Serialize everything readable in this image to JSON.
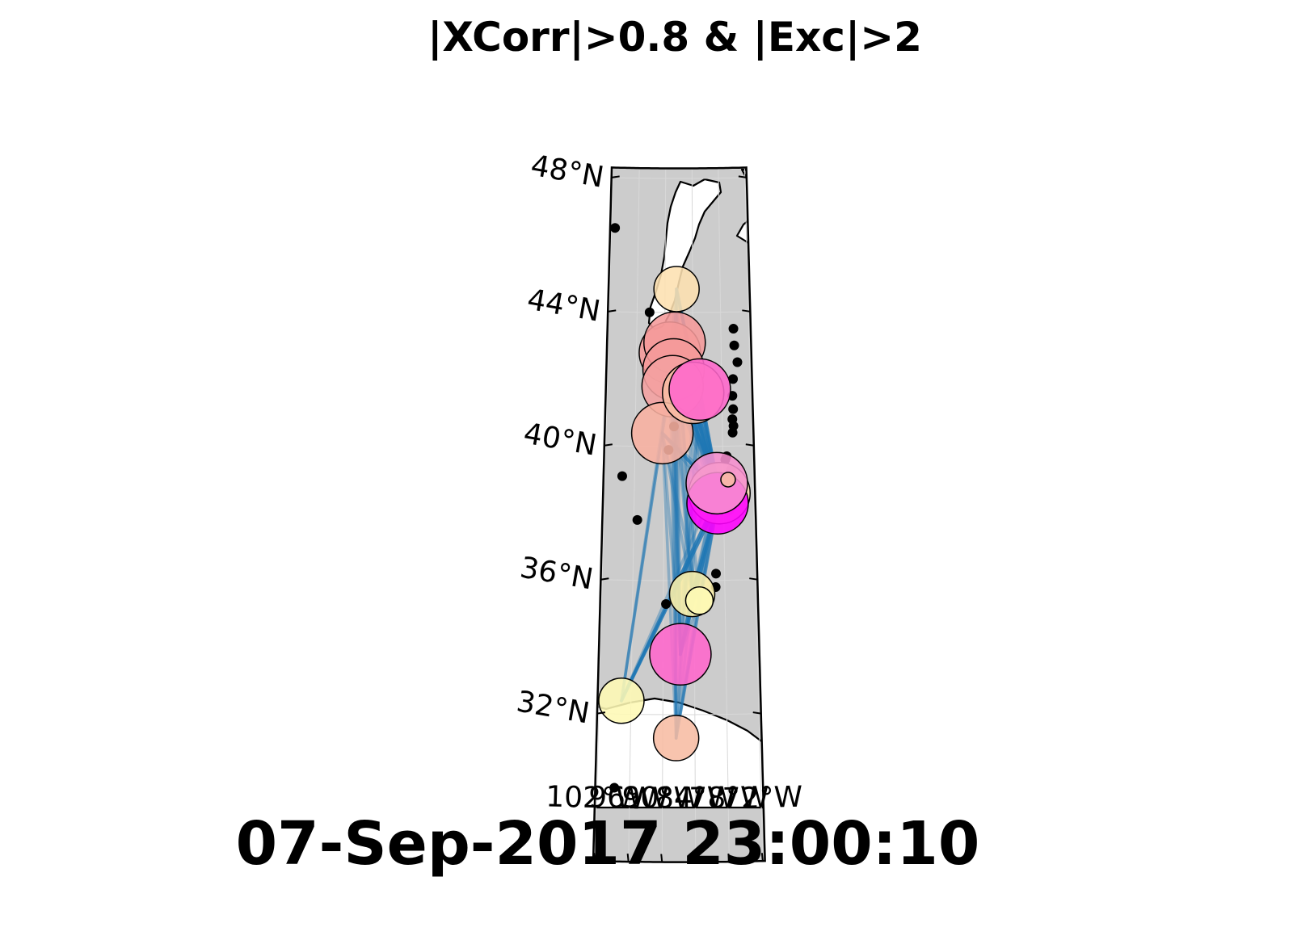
{
  "title": "|XCorr|>0.8 & |Exc|>2",
  "timestamp": "07-Sep-2017 23:00:10",
  "lat_labels": [
    {
      "text": "48°N",
      "lat": 48
    },
    {
      "text": "44°N",
      "lat": 44
    },
    {
      "text": "40°N",
      "lat": 40
    },
    {
      "text": "36°N",
      "lat": 36
    },
    {
      "text": "32°N",
      "lat": 32
    }
  ],
  "lon_labels": [
    {
      "text": "102°W",
      "lon": -102
    },
    {
      "text": "96°W",
      "lon": -96
    },
    {
      "text": "90°W",
      "lon": -90
    },
    {
      "text": "84°W",
      "lon": -84
    },
    {
      "text": "78°W",
      "lon": -78
    },
    {
      "text": "72°W",
      "lon": -72
    }
  ],
  "colors": {
    "land": "#cccccc",
    "water": "#ffffff",
    "link": "#1f77b4",
    "dot": "#000000"
  },
  "stations_active": [
    {
      "id": "A",
      "lon": -87.5,
      "lat": 44.7,
      "size": "medium",
      "color": "#fde0b0"
    },
    {
      "id": "B",
      "lon": -88.9,
      "lat": 42.8,
      "size": "large",
      "color": "#f59a9a"
    },
    {
      "id": "C",
      "lon": -87.9,
      "lat": 43.1,
      "size": "large",
      "color": "#f59a9a"
    },
    {
      "id": "D",
      "lon": -88.1,
      "lat": 42.3,
      "size": "large",
      "color": "#f59a9a"
    },
    {
      "id": "E",
      "lon": -88.3,
      "lat": 41.8,
      "size": "large",
      "color": "#f4a0a0"
    },
    {
      "id": "F",
      "lon": -90.4,
      "lat": 40.4,
      "size": "large",
      "color": "#f8b0a0"
    },
    {
      "id": "G",
      "lon": -84.0,
      "lat": 41.6,
      "size": "large",
      "color": "#f7bca3"
    },
    {
      "id": "H",
      "lon": -82.6,
      "lat": 41.7,
      "size": "large",
      "color": "#ff66cc"
    },
    {
      "id": "I",
      "lon": -78.8,
      "lat": 38.6,
      "size": "large",
      "color": "#fde0b0"
    },
    {
      "id": "J",
      "lon": -79.2,
      "lat": 38.3,
      "size": "large",
      "color": "#ff00ff"
    },
    {
      "id": "K",
      "lon": -79.3,
      "lat": 38.9,
      "size": "large",
      "color": "#f78fcf"
    },
    {
      "id": "L",
      "lon": -77.0,
      "lat": 39.0,
      "size": "tiny",
      "color": "#f7bca3"
    },
    {
      "id": "M",
      "lon": -84.4,
      "lat": 35.6,
      "size": "medium",
      "color": "#fdf0a8"
    },
    {
      "id": "N",
      "lon": -83.0,
      "lat": 35.4,
      "size": "small",
      "color": "#fef9b5"
    },
    {
      "id": "O",
      "lon": -86.7,
      "lat": 33.8,
      "size": "large",
      "color": "#ff66cc"
    },
    {
      "id": "P",
      "lon": -97.8,
      "lat": 32.4,
      "size": "medium",
      "color": "#fef9b5"
    },
    {
      "id": "Q",
      "lon": -87.5,
      "lat": 31.3,
      "size": "medium",
      "color": "#f7bca3"
    }
  ],
  "stations_inactive": [
    {
      "lon": -101.2,
      "lat": 46.5
    },
    {
      "lon": -93.3,
      "lat": 44.0
    },
    {
      "lon": -98.5,
      "lat": 39.1
    },
    {
      "lon": -95.3,
      "lat": 37.8
    },
    {
      "lon": -89.1,
      "lat": 39.9
    },
    {
      "lon": -88.0,
      "lat": 40.6
    },
    {
      "lon": -88.2,
      "lat": 41.3
    },
    {
      "lon": -89.5,
      "lat": 35.3
    },
    {
      "lon": -98.8,
      "lat": 29.8
    },
    {
      "lon": -79.7,
      "lat": 36.2
    },
    {
      "lon": -79.8,
      "lat": 35.8
    },
    {
      "lon": -76.8,
      "lat": 38.1
    },
    {
      "lon": -77.5,
      "lat": 39.6
    },
    {
      "lon": -77.2,
      "lat": 39.7
    },
    {
      "lon": -76.4,
      "lat": 39.3
    },
    {
      "lon": -75.9,
      "lat": 40.8
    },
    {
      "lon": -75.7,
      "lat": 40.6
    },
    {
      "lon": -75.7,
      "lat": 41.1
    },
    {
      "lon": -75.8,
      "lat": 41.5
    },
    {
      "lon": -75.3,
      "lat": 43.5
    },
    {
      "lon": -75.2,
      "lat": 43.0
    },
    {
      "lon": -74.6,
      "lat": 42.5
    },
    {
      "lon": -75.6,
      "lat": 42.0
    },
    {
      "lon": -75.9,
      "lat": 40.4
    }
  ],
  "links": [
    [
      "A",
      "I"
    ],
    [
      "A",
      "K"
    ],
    [
      "A",
      "J"
    ],
    [
      "A",
      "O"
    ],
    [
      "A",
      "M"
    ],
    [
      "A",
      "D"
    ],
    [
      "A",
      "C"
    ],
    [
      "A",
      "Q"
    ],
    [
      "A",
      "F"
    ],
    [
      "B",
      "I"
    ],
    [
      "B",
      "K"
    ],
    [
      "B",
      "J"
    ],
    [
      "B",
      "O"
    ],
    [
      "B",
      "M"
    ],
    [
      "B",
      "Q"
    ],
    [
      "B",
      "H"
    ],
    [
      "C",
      "I"
    ],
    [
      "C",
      "K"
    ],
    [
      "C",
      "J"
    ],
    [
      "C",
      "O"
    ],
    [
      "C",
      "M"
    ],
    [
      "C",
      "H"
    ],
    [
      "C",
      "N"
    ],
    [
      "C",
      "Q"
    ],
    [
      "D",
      "I"
    ],
    [
      "D",
      "K"
    ],
    [
      "D",
      "J"
    ],
    [
      "D",
      "O"
    ],
    [
      "D",
      "H"
    ],
    [
      "D",
      "M"
    ],
    [
      "E",
      "I"
    ],
    [
      "E",
      "K"
    ],
    [
      "E",
      "J"
    ],
    [
      "E",
      "O"
    ],
    [
      "E",
      "H"
    ],
    [
      "E",
      "Q"
    ],
    [
      "F",
      "I"
    ],
    [
      "F",
      "K"
    ],
    [
      "F",
      "J"
    ],
    [
      "F",
      "O"
    ],
    [
      "F",
      "M"
    ],
    [
      "F",
      "Q"
    ],
    [
      "F",
      "P"
    ],
    [
      "F",
      "D"
    ],
    [
      "F",
      "C"
    ],
    [
      "F",
      "N"
    ],
    [
      "G",
      "I"
    ],
    [
      "G",
      "K"
    ],
    [
      "G",
      "J"
    ],
    [
      "G",
      "O"
    ],
    [
      "G",
      "M"
    ],
    [
      "G",
      "C"
    ],
    [
      "G",
      "D"
    ],
    [
      "H",
      "I"
    ],
    [
      "H",
      "K"
    ],
    [
      "H",
      "J"
    ],
    [
      "H",
      "O"
    ],
    [
      "H",
      "M"
    ],
    [
      "H",
      "Q"
    ],
    [
      "M",
      "I"
    ],
    [
      "M",
      "K"
    ],
    [
      "M",
      "J"
    ],
    [
      "M",
      "O"
    ],
    [
      "M",
      "N"
    ],
    [
      "N",
      "I"
    ],
    [
      "N",
      "K"
    ],
    [
      "N",
      "J"
    ],
    [
      "N",
      "O"
    ],
    [
      "O",
      "I"
    ],
    [
      "O",
      "K"
    ],
    [
      "O",
      "J"
    ],
    [
      "O",
      "Q"
    ],
    [
      "P",
      "I"
    ],
    [
      "P",
      "K"
    ],
    [
      "P",
      "J"
    ],
    [
      "P",
      "F"
    ],
    [
      "P",
      "C"
    ],
    [
      "Q",
      "I"
    ],
    [
      "Q",
      "K"
    ],
    [
      "Q",
      "J"
    ],
    [
      "Q",
      "M"
    ],
    [
      "Q",
      "N"
    ],
    [
      "I",
      "L"
    ],
    [
      "K",
      "L"
    ],
    [
      "J",
      "L"
    ]
  ],
  "strong_links": [
    [
      "A",
      "I"
    ],
    [
      "C",
      "I"
    ],
    [
      "C",
      "K"
    ],
    [
      "D",
      "I"
    ],
    [
      "D",
      "K"
    ],
    [
      "G",
      "I"
    ],
    [
      "H",
      "I"
    ],
    [
      "P",
      "I"
    ],
    [
      "P",
      "J"
    ],
    [
      "F",
      "I"
    ],
    [
      "M",
      "O"
    ],
    [
      "O",
      "J"
    ],
    [
      "M",
      "J"
    ],
    [
      "C",
      "D"
    ]
  ]
}
